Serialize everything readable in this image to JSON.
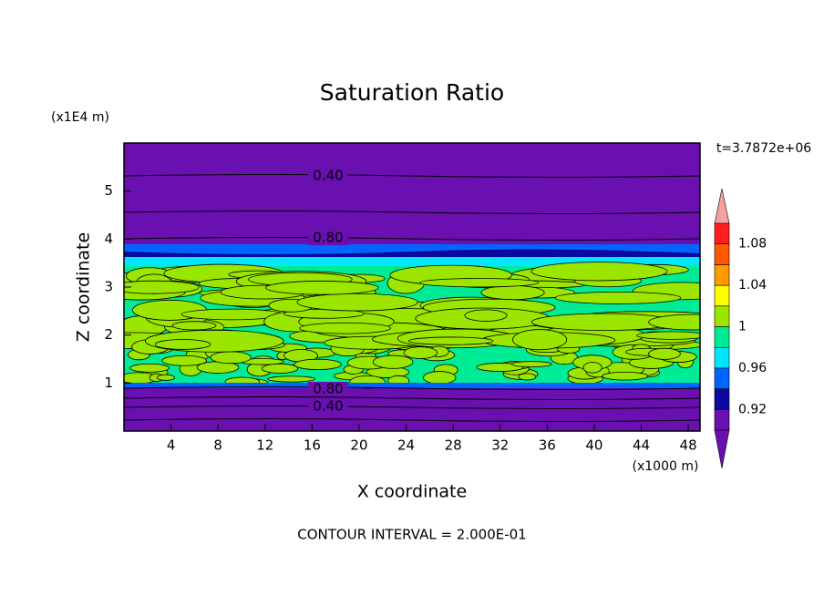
{
  "chart_data": {
    "type": "contour",
    "title": "Saturation Ratio",
    "x_label": "X coordinate",
    "y_label": "Z coordinate",
    "x_unit": "(x1000 m)",
    "y_unit": "(x1E4 m)",
    "time_label": "t=3.7872e+06",
    "footer": "CONTOUR INTERVAL = 2.000E-01",
    "xlim": [
      0,
      49
    ],
    "xticks": [
      4,
      8,
      12,
      16,
      20,
      24,
      28,
      32,
      36,
      40,
      44,
      48
    ],
    "ylim": [
      0,
      6
    ],
    "yticks": [
      1,
      2,
      3,
      4,
      5
    ],
    "contour_labels": [
      {
        "value": 0.4,
        "label": "0.40"
      },
      {
        "value": 0.8,
        "label": "0.80"
      },
      {
        "value": 0.8,
        "label": "0.80"
      },
      {
        "value": 0.4,
        "label": "0.40"
      }
    ],
    "colorbar": {
      "lim": [
        0.9,
        1.1
      ],
      "ticks": [
        0.92,
        0.96,
        1,
        1.04,
        1.08
      ],
      "colors": [
        "#6a0fb0",
        "#0a0aa0",
        "#0064ff",
        "#00e6ff",
        "#00eb96",
        "#9be600",
        "#ffff00",
        "#ff9900",
        "#ff5a00",
        "#ff1e1e"
      ],
      "under_color": "#6a0fb0",
      "over_color": "#f5a0a0"
    }
  }
}
